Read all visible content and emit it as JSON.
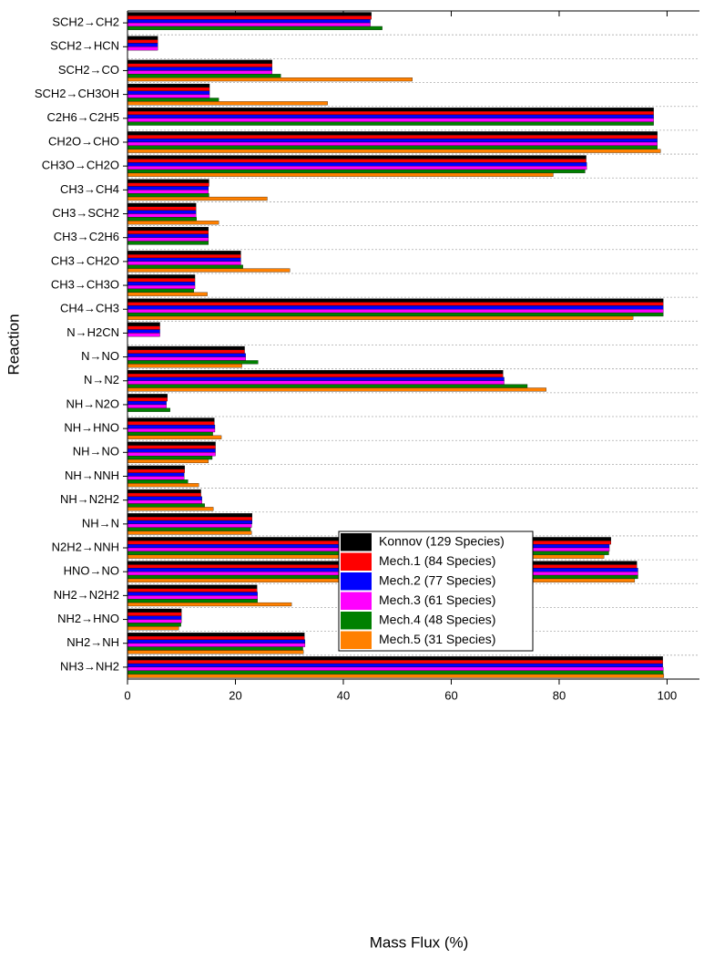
{
  "chart_data": {
    "type": "hbar",
    "x_label": "Mass Flux (%)",
    "y_label": "Reaction",
    "categories": [
      "SCH2→CH2",
      "SCH2→HCN",
      "SCH2→CO",
      "SCH2→CH3OH",
      "C2H6→C2H5",
      "CH2O→CHO",
      "CH3O→CH2O",
      "CH3→CH4",
      "CH3→SCH2",
      "CH3→C2H6",
      "CH3→CH2O",
      "CH3→CH3O",
      "CH4→CH3",
      "N→H2CN",
      "N→NO",
      "N→N2",
      "NH→N2O",
      "NH→HNO",
      "NH→NO",
      "NH→NNH",
      "NH→N2H2",
      "NH→N",
      "N2H2→NNH",
      "HNO→NO",
      "NH2→N2H2",
      "NH2→HNO",
      "NH2→NH",
      "NH3→NH2"
    ],
    "series": [
      {
        "name": "Konnov (129 Species)",
        "color": "#000000",
        "values": [
          45.2,
          5.6,
          26.8,
          15.2,
          97.5,
          98.2,
          85,
          15.1,
          12.7,
          15,
          21,
          12.5,
          99.3,
          6,
          21.7,
          69.6,
          7.4,
          16.1,
          16.3,
          10.6,
          13.6,
          23.1,
          89.6,
          94.4,
          24,
          10,
          32.8,
          99.2
        ]
      },
      {
        "name": "Mech.1 (84 Species)",
        "color": "#ff0000",
        "values": [
          45.2,
          5.6,
          26.8,
          15.2,
          97.5,
          98.2,
          85,
          15.1,
          12.7,
          15,
          21,
          12.5,
          99.3,
          6,
          21.7,
          69.6,
          7.4,
          16.1,
          16.3,
          10.6,
          13.6,
          23.1,
          89.6,
          94.4,
          24,
          10,
          32.8,
          99.2
        ]
      },
      {
        "name": "Mech.2 (77 Species)",
        "color": "#0000ff",
        "values": [
          45,
          5.6,
          26.8,
          15.2,
          97.5,
          98.2,
          85.1,
          15,
          12.7,
          15,
          21,
          12.5,
          99.3,
          6,
          21.9,
          69.8,
          7.2,
          16.2,
          16.3,
          10.5,
          13.8,
          23.1,
          89.3,
          94.6,
          24.1,
          10,
          32.9,
          99.2
        ]
      },
      {
        "name": "Mech.3 (61 Species)",
        "color": "#ff00ff",
        "values": [
          45,
          5.6,
          26.8,
          15.2,
          97.5,
          98.2,
          85.1,
          15,
          12.7,
          15,
          21,
          12.5,
          99.3,
          6,
          21.9,
          69.8,
          7.2,
          16.2,
          16.3,
          10.5,
          13.8,
          23,
          89.3,
          94.6,
          24.1,
          10,
          32.9,
          99.3
        ]
      },
      {
        "name": "Mech.4 (48 Species)",
        "color": "#008000",
        "values": [
          47.2,
          null,
          28.4,
          16.9,
          97.5,
          98.2,
          84.8,
          15.1,
          12.8,
          15,
          21.4,
          12.3,
          99.3,
          null,
          24.2,
          74.1,
          7.9,
          15.8,
          15.7,
          11.2,
          14.3,
          22.8,
          89.2,
          94.6,
          24.1,
          9.9,
          32.5,
          99.3
        ]
      },
      {
        "name": "Mech.5 (31 Species)",
        "color": "#ff8000",
        "values": [
          null,
          null,
          52.8,
          37.1,
          null,
          98.8,
          78.9,
          25.9,
          16.9,
          null,
          30.1,
          14.8,
          93.7,
          null,
          21.2,
          77.6,
          null,
          17.4,
          15,
          13.2,
          15.9,
          23,
          88.3,
          94,
          30.4,
          9.5,
          32.6,
          99.4
        ]
      }
    ],
    "xlim": [
      0,
      106
    ],
    "xticks": [
      0,
      20,
      40,
      60,
      80,
      100
    ],
    "grid": true,
    "legend_position": "center"
  }
}
